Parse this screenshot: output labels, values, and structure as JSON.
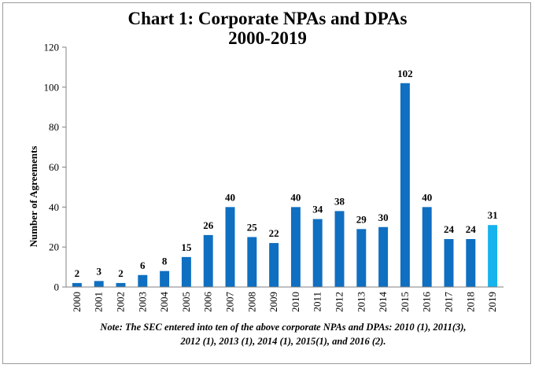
{
  "chart_data": {
    "type": "bar",
    "title_line1": "Chart 1: Corporate NPAs and DPAs",
    "title_line2": "2000-2019",
    "ylabel": "Number of Agreements",
    "xlabel": "",
    "ylim": [
      0,
      120
    ],
    "yticks": [
      0,
      20,
      40,
      60,
      80,
      100,
      120
    ],
    "grid": false,
    "categories": [
      "2000",
      "2001",
      "2002",
      "2003",
      "2004",
      "2005",
      "2006",
      "2007",
      "2008",
      "2009",
      "2010",
      "2011",
      "2012",
      "2013",
      "2014",
      "2015",
      "2016",
      "2017",
      "2018",
      "2019"
    ],
    "values": [
      2,
      3,
      2,
      6,
      8,
      15,
      26,
      40,
      25,
      22,
      40,
      34,
      38,
      29,
      30,
      102,
      40,
      24,
      24,
      31
    ],
    "colors": {
      "bar": "#0f6fc1",
      "highlight_bar": "#16b3ec",
      "highlight_category": "2019"
    },
    "note_line1": "Note: The SEC entered into ten of the above corporate NPAs and DPAs: 2010 (1), 2011(3),",
    "note_line2": "2012 (1), 2013 (1), 2014 (1), 2015(1), and 2016 (2)."
  }
}
